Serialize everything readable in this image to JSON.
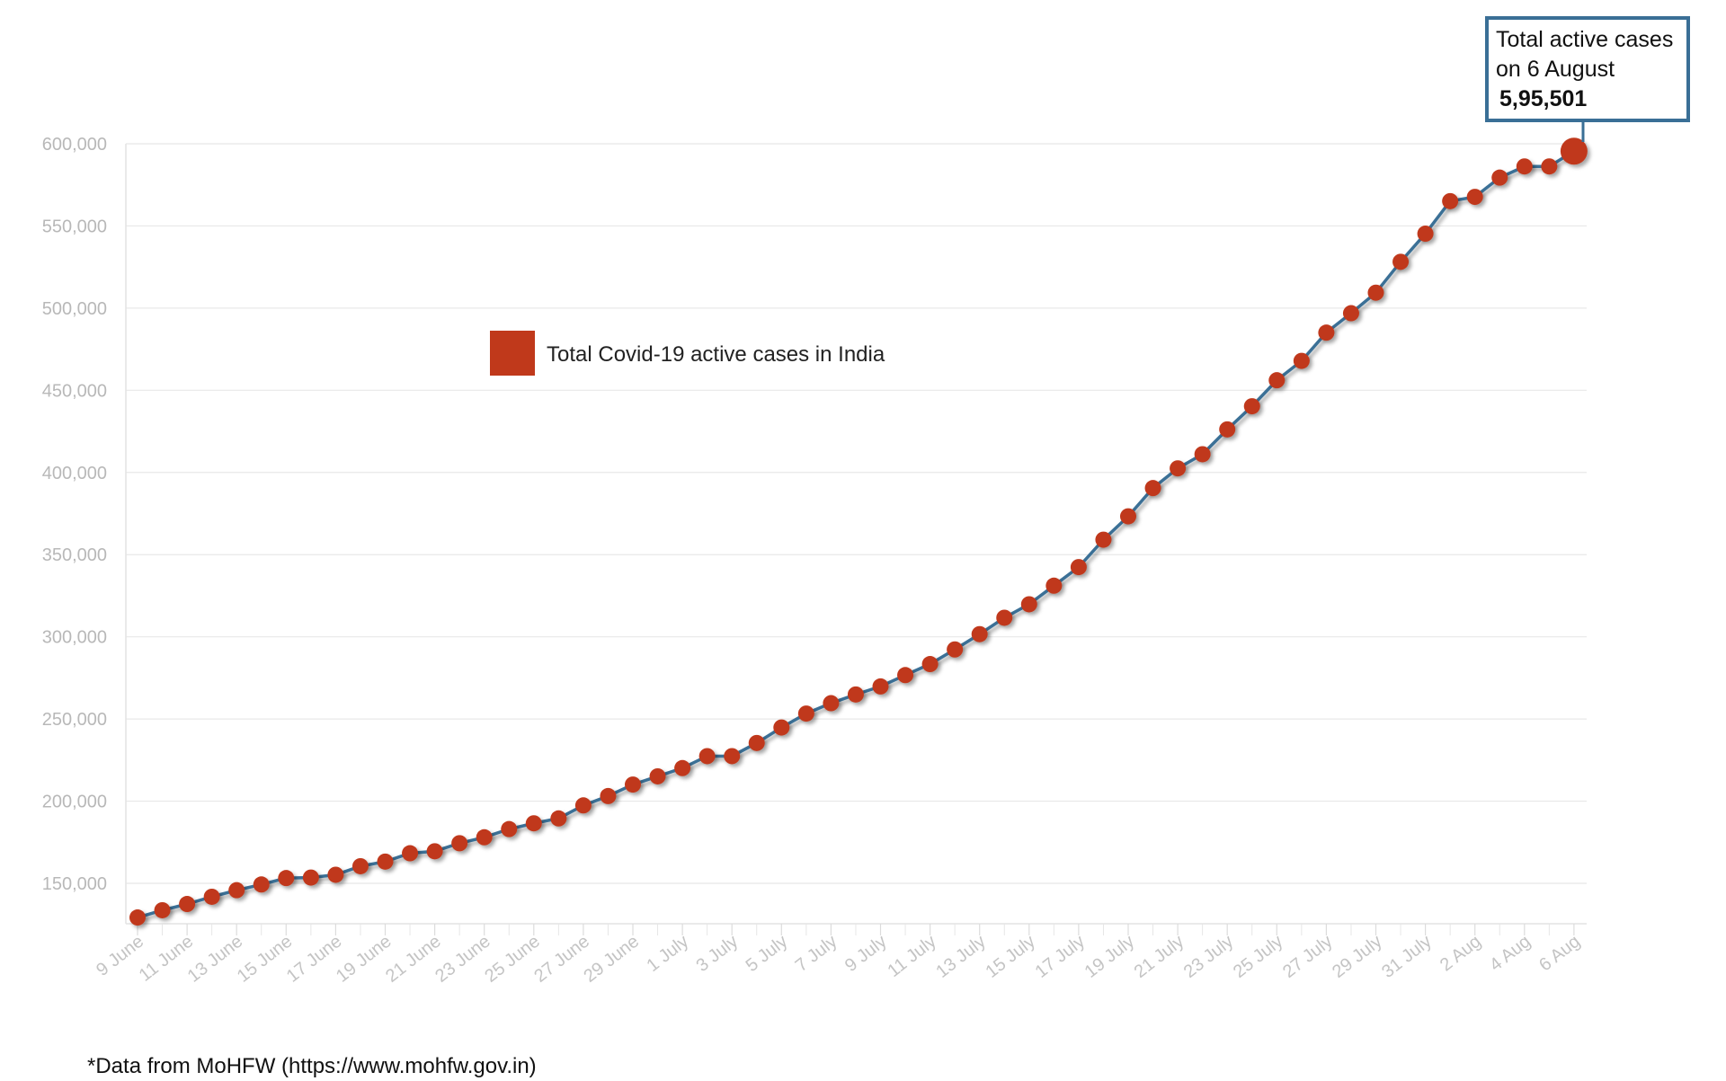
{
  "chart_data": {
    "type": "line",
    "legend": "Total Covid-19 active cases in India",
    "legend_placement": "top-left",
    "grid": true,
    "ylim": [
      125000,
      600000
    ],
    "y_ticks": [
      "150,000",
      "200,000",
      "250,000",
      "300,000",
      "350,000",
      "400,000",
      "450,000",
      "500,000",
      "550,000",
      "600,000"
    ],
    "y_tick_values": [
      150000,
      200000,
      250000,
      300000,
      350000,
      400000,
      450000,
      500000,
      550000,
      600000
    ],
    "x_tick_labels": [
      "9 June",
      "11 June",
      "13 June",
      "15 June",
      "17 June",
      "19 June",
      "21 June",
      "23 June",
      "25 June",
      "27 June",
      "29 June",
      "1 July",
      "3 July",
      "5 July",
      "7 July",
      "9 July",
      "11 July",
      "13 July",
      "15 July",
      "17 July",
      "19 July",
      "21 July",
      "23 July",
      "25 July",
      "27 July",
      "29 July",
      "31 July",
      "2 Aug",
      "4 Aug",
      "6 Aug"
    ],
    "x": [
      "9 June",
      "10 June",
      "11 June",
      "12 June",
      "13 June",
      "14 June",
      "15 June",
      "16 June",
      "17 June",
      "18 June",
      "19 June",
      "20 June",
      "21 June",
      "22 June",
      "23 June",
      "24 June",
      "25 June",
      "26 June",
      "27 June",
      "28 June",
      "29 June",
      "30 June",
      "1 July",
      "2 July",
      "3 July",
      "4 July",
      "5 July",
      "6 July",
      "7 July",
      "8 July",
      "9 July",
      "10 July",
      "11 July",
      "12 July",
      "13 July",
      "14 July",
      "15 July",
      "16 July",
      "17 July",
      "18 July",
      "19 July",
      "20 July",
      "21 July",
      "22 July",
      "23 July",
      "24 July",
      "25 July",
      "26 July",
      "27 July",
      "28 July",
      "29 July",
      "30 July",
      "31 July",
      "1 Aug",
      "2 Aug",
      "3 Aug",
      "4 Aug",
      "5 Aug",
      "6 Aug"
    ],
    "values": [
      129200,
      133600,
      137400,
      141800,
      145800,
      149300,
      153200,
      153500,
      155200,
      160400,
      163200,
      168300,
      169500,
      174400,
      178000,
      183000,
      186500,
      189500,
      197400,
      203100,
      210100,
      215100,
      220100,
      227400,
      227400,
      235400,
      244800,
      253300,
      259600,
      264900,
      269800,
      276700,
      283400,
      292300,
      301600,
      311600,
      319800,
      331100,
      342400,
      359100,
      373300,
      390500,
      402500,
      411100,
      426200,
      440300,
      456100,
      467900,
      485100,
      496900,
      509400,
      528200,
      545300,
      565100,
      567700,
      579400,
      586200,
      586200,
      595501
    ]
  },
  "callout": {
    "line1": "Total active cases",
    "line2": "on 6 August",
    "value": "5,95,501"
  },
  "source_note": "*Data from MoHFW (https://www.mohfw.gov.in)",
  "colors": {
    "point": "#c0391b",
    "line": "#3a6f96",
    "grid": "#e8e8e8",
    "callout_border": "#3a6f96"
  }
}
